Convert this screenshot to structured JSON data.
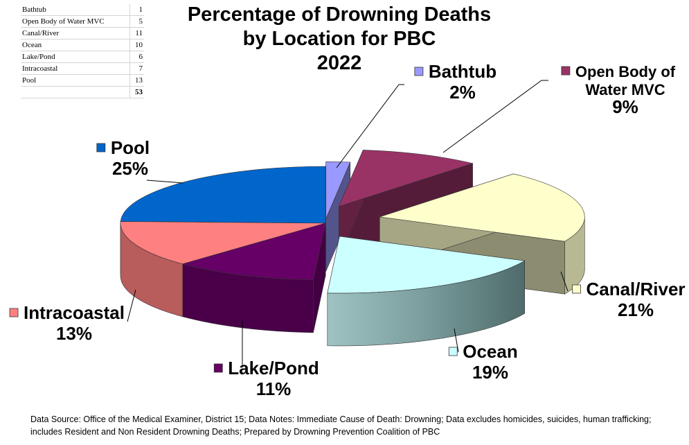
{
  "chart_data": {
    "type": "pie",
    "title_lines": [
      "Percentage of Drowning Deaths",
      "by Location for PBC",
      "2022"
    ],
    "slices": [
      {
        "label": "Bathtub",
        "count": 1,
        "percent": "2%",
        "color": "#9999ff",
        "icon": "bathtub-square"
      },
      {
        "label": "Open Body of Water MVC",
        "count": 5,
        "percent": "9%",
        "color": "#993366",
        "icon": "open-water-square"
      },
      {
        "label": "Canal/River",
        "count": 11,
        "percent": "21%",
        "color": "#ffffcc",
        "icon": "canal-square"
      },
      {
        "label": "Ocean",
        "count": 10,
        "percent": "19%",
        "color": "#ccffff",
        "icon": "ocean-square"
      },
      {
        "label": "Lake/Pond",
        "count": 6,
        "percent": "11%",
        "color": "#660066",
        "icon": "lake-square"
      },
      {
        "label": "Intracoastal",
        "count": 7,
        "percent": "13%",
        "color": "#ff8080",
        "icon": "intracoastal-square"
      },
      {
        "label": "Pool",
        "count": 13,
        "percent": "25%",
        "color": "#0066cc",
        "icon": "pool-square"
      }
    ],
    "table": {
      "rows": [
        {
          "label": "Bathtub",
          "value": "1"
        },
        {
          "label": "Open Body of Water  MVC",
          "value": "5"
        },
        {
          "label": "Canal/River",
          "value": "11"
        },
        {
          "label": "Ocean",
          "value": "10"
        },
        {
          "label": "Lake/Pond",
          "value": "6"
        },
        {
          "label": "Intracoastal",
          "value": "7"
        },
        {
          "label": "Pool",
          "value": "13"
        }
      ],
      "total": "53"
    },
    "label_lines": {
      "Bathtub": [
        "Bathtub"
      ],
      "Open Body of Water MVC": [
        "Open Body of",
        "Water MVC"
      ],
      "Canal/River": [
        "Canal/River"
      ],
      "Ocean": [
        "Ocean"
      ],
      "Lake/Pond": [
        "Lake/Pond"
      ],
      "Intracoastal": [
        "Intracoastal"
      ],
      "Pool": [
        "Pool"
      ]
    },
    "footnote": "Data Source: Office of the Medical Examiner, District 15; Data Notes: Immediate Cause of Death: Drowning; Data excludes homicides, suicides, human trafficking; includes Resident and Non Resident Drowning Deaths; Prepared by Drowning Prevention Coalition of PBC"
  }
}
